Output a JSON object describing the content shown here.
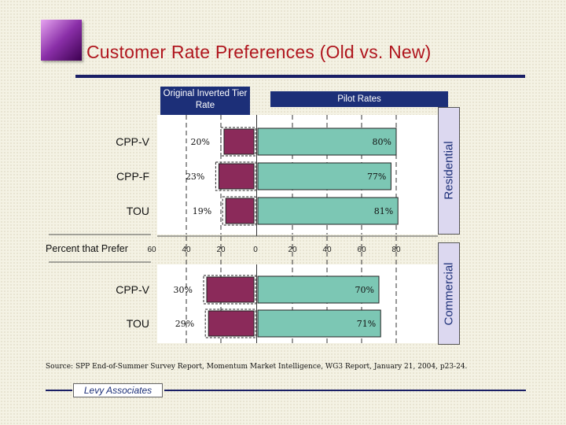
{
  "slide": {
    "title": "Customer Rate Preferences (Old vs. New)",
    "source": "Source: SPP End-of-Summer Survey Report, Momentum Market Intelligence, WG3 Report, January 21, 2004, p23-24.",
    "footer": "Levy Associates"
  },
  "colors": {
    "title": "#b0161e",
    "navy": "#1c2f78",
    "old_rate_bar": "#8b2a5a",
    "pilot_bar": "#7cc7b4",
    "side_label_bg": "#dcd8f0"
  },
  "chart_data": {
    "type": "bar",
    "orientation": "horizontal-back-to-back",
    "axis_title": "Percent that Prefer",
    "left_header": "Original Inverted Tier Rate",
    "right_header": "Pilot Rates",
    "left_ticks": [
      "60",
      "40",
      "20",
      "0"
    ],
    "right_ticks": [
      "20",
      "40",
      "60",
      "80"
    ],
    "xlim": [
      0,
      80
    ],
    "panels": [
      {
        "name": "Residential",
        "categories": [
          "CPP-V",
          "CPP-F",
          "TOU"
        ],
        "old_rate": [
          20,
          23,
          19
        ],
        "pilot_rates": [
          80,
          77,
          81
        ]
      },
      {
        "name": "Commercial",
        "categories": [
          "CPP-V",
          "TOU"
        ],
        "old_rate": [
          30,
          29
        ],
        "pilot_rates": [
          70,
          71
        ]
      }
    ]
  }
}
